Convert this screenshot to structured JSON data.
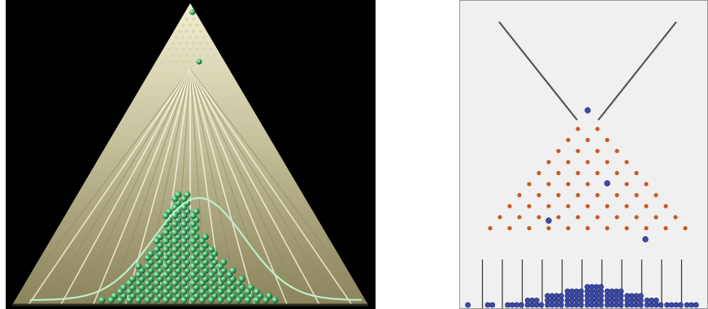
{
  "photo": {
    "subject": "galton-board-photograph",
    "colors": {
      "background": "#000000",
      "board_glow": "#f2efc8",
      "beads": "#3fb06a",
      "curve": "#9ee3b0"
    },
    "bead_column_heights": [
      1,
      2,
      4,
      6,
      9,
      12,
      16,
      22,
      26,
      26,
      22,
      16,
      13,
      10,
      8,
      6,
      4,
      3,
      2,
      1
    ]
  },
  "simulation": {
    "subject": "galton-board-simulation",
    "colors": {
      "background": "#f0f0f0",
      "border": "#999999",
      "funnel": "#555555",
      "peg": "#c85a1e",
      "ball": "#3d4aa6",
      "divider": "#333333"
    },
    "peg_rows": 10,
    "bin_counts": [
      1,
      2,
      4,
      7,
      12,
      16,
      20,
      16,
      12,
      7,
      4,
      3
    ],
    "falling_balls": 4
  }
}
